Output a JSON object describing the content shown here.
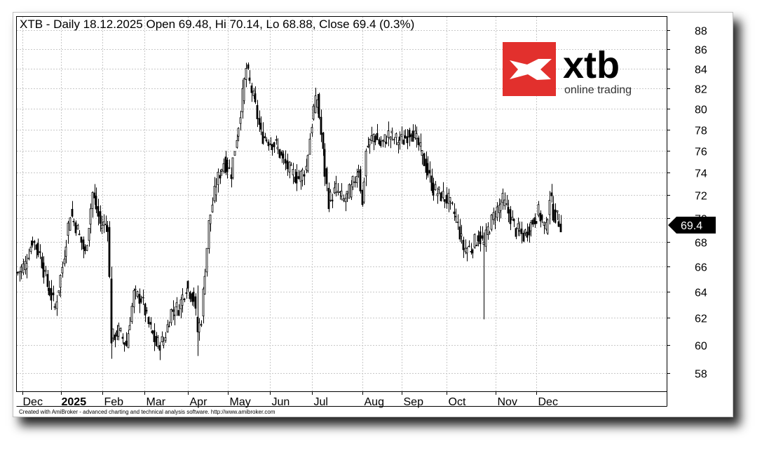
{
  "colors": {
    "candle": "#000000",
    "grid": "#c8c8c8",
    "logo_red": "#e2302d",
    "background": "#ffffff",
    "marker": "#000000"
  },
  "logo": {
    "brand": "xtb",
    "tagline": "online trading"
  },
  "footer": "Created with AmiBroker - advanced charting and technical analysis software. http://www.amibroker.com",
  "chart_data": {
    "type": "candlestick",
    "title": "XTB - Daily 18.12.2025 Open 69.48, Hi 70.14, Lo 68.88, Close 69.4 (0.3%)",
    "ylim": [
      57,
      89
    ],
    "y_scale": "log",
    "yticks": [
      58,
      60,
      62,
      64,
      66,
      68,
      70,
      72,
      74,
      76,
      78,
      80,
      82,
      84,
      86,
      88
    ],
    "last_close_label": "69.4",
    "last_close": 69.4,
    "grid": true,
    "x_axis": {
      "months": [
        {
          "label": "Dec",
          "bold": false
        },
        {
          "label": "2025",
          "bold": true
        },
        {
          "label": "Feb",
          "bold": false
        },
        {
          "label": "Mar",
          "bold": false
        },
        {
          "label": "Apr",
          "bold": false
        },
        {
          "label": "May",
          "bold": false
        },
        {
          "label": "Jun",
          "bold": false
        },
        {
          "label": "Jul",
          "bold": false
        },
        {
          "label": "Aug",
          "bold": false
        },
        {
          "label": "Sep",
          "bold": false
        },
        {
          "label": "Oct",
          "bold": false
        },
        {
          "label": "Nov",
          "bold": false
        },
        {
          "label": "Dec",
          "bold": false
        }
      ]
    },
    "price_path": [
      [
        0,
        65.5
      ],
      [
        4,
        66.2
      ],
      [
        8,
        68.2
      ],
      [
        12,
        67.0
      ],
      [
        16,
        64.5
      ],
      [
        20,
        62.8
      ],
      [
        24,
        66.0
      ],
      [
        28,
        70.5
      ],
      [
        32,
        69.0
      ],
      [
        36,
        67.0
      ],
      [
        40,
        72.2
      ],
      [
        44,
        69.5
      ],
      [
        48,
        69.5
      ],
      [
        50,
        60.5
      ],
      [
        54,
        61.0
      ],
      [
        58,
        60.0
      ],
      [
        62,
        63.8
      ],
      [
        66,
        63.5
      ],
      [
        70,
        61.5
      ],
      [
        74,
        60.0
      ],
      [
        78,
        60.3
      ],
      [
        82,
        62.5
      ],
      [
        86,
        62.8
      ],
      [
        90,
        64.5
      ],
      [
        94,
        63.5
      ],
      [
        96,
        61.0
      ],
      [
        98,
        62.0
      ],
      [
        102,
        69.5
      ],
      [
        106,
        73.0
      ],
      [
        110,
        75.0
      ],
      [
        114,
        74.0
      ],
      [
        118,
        78.5
      ],
      [
        122,
        84.0
      ],
      [
        126,
        81.0
      ],
      [
        130,
        77.5
      ],
      [
        134,
        77.0
      ],
      [
        138,
        76.5
      ],
      [
        142,
        75.0
      ],
      [
        146,
        74.0
      ],
      [
        150,
        73.5
      ],
      [
        154,
        74.5
      ],
      [
        158,
        80.0
      ],
      [
        160,
        81.0
      ],
      [
        164,
        74.0
      ],
      [
        166,
        71.5
      ],
      [
        170,
        72.5
      ],
      [
        174,
        71.5
      ],
      [
        178,
        72.5
      ],
      [
        182,
        74.5
      ],
      [
        184,
        71.0
      ],
      [
        186,
        76.0
      ],
      [
        190,
        77.5
      ],
      [
        194,
        76.5
      ],
      [
        198,
        77.5
      ],
      [
        202,
        77.0
      ],
      [
        206,
        77.0
      ],
      [
        210,
        78.0
      ],
      [
        214,
        76.5
      ],
      [
        218,
        74.5
      ],
      [
        222,
        72.5
      ],
      [
        226,
        72.0
      ],
      [
        230,
        71.5
      ],
      [
        234,
        70.0
      ],
      [
        238,
        67.5
      ],
      [
        242,
        67.5
      ],
      [
        246,
        68.5
      ],
      [
        249,
        67.8
      ],
      [
        251,
        69.0
      ],
      [
        255,
        70.5
      ],
      [
        259,
        71.5
      ],
      [
        262,
        70.5
      ],
      [
        266,
        69.0
      ],
      [
        270,
        68.5
      ],
      [
        274,
        69.5
      ],
      [
        278,
        70.5
      ],
      [
        282,
        69.0
      ],
      [
        284,
        72.0
      ],
      [
        286,
        70.5
      ],
      [
        290,
        69.5
      ]
    ],
    "special_wicks": [
      [
        249,
        61.9,
        68.2
      ],
      [
        96,
        59.2,
        64.5
      ],
      [
        50,
        59.0,
        66.0
      ]
    ]
  }
}
